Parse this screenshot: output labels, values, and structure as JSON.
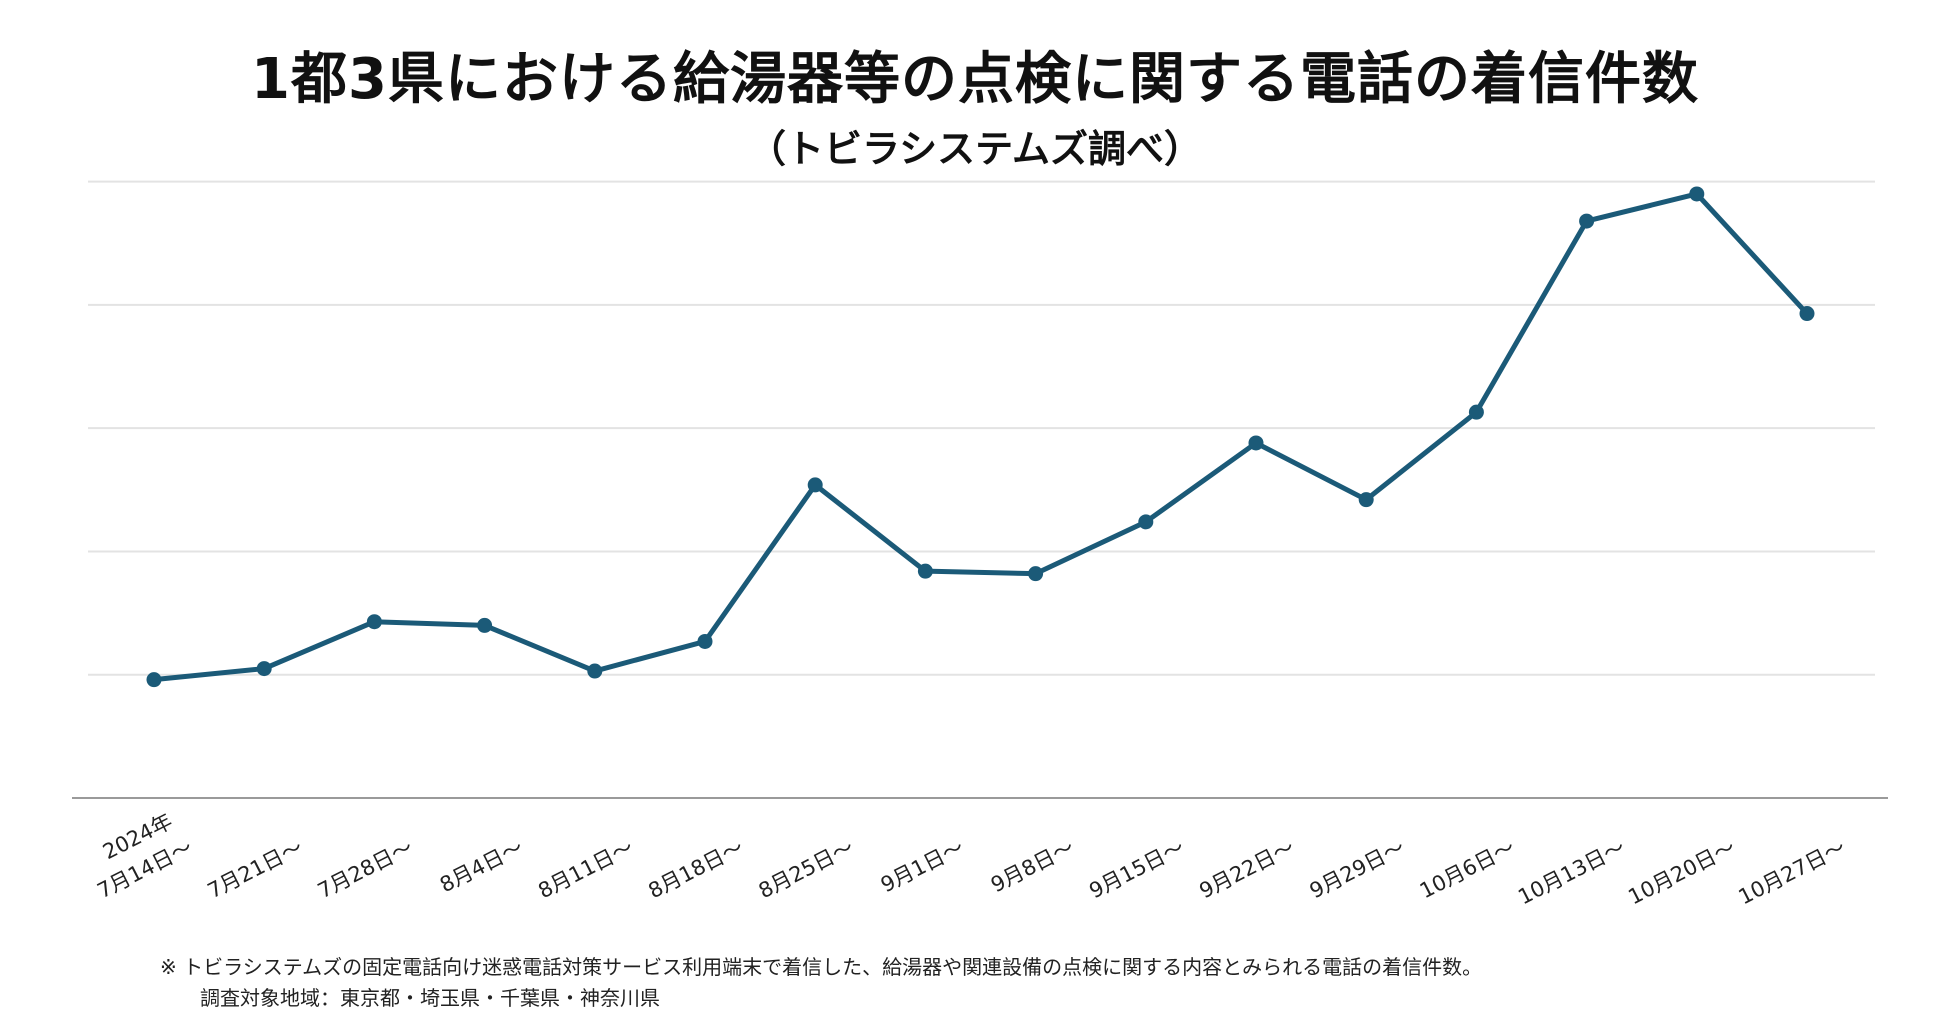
{
  "title": "1都3県における給湯器等の点検に関する電話の着信件数",
  "subtitle": "（トビラシステムズ調べ）",
  "chart_data": {
    "type": "line",
    "title": "1都3県における給湯器等の点検に関する電話の着信件数",
    "subtitle": "（トビラシステムズ調べ）",
    "x_prefix": "2024年",
    "categories": [
      "7月14日～",
      "7月21日～",
      "7月28日～",
      "8月4日～",
      "8月11日～",
      "8月18日～",
      "8月25日～",
      "9月1日～",
      "9月8日～",
      "9月15日～",
      "9月22日～",
      "9月29日～",
      "10月6日～",
      "10月13日～",
      "10月20日～",
      "10月27日～"
    ],
    "series": [
      {
        "values": [
          0.96,
          1.05,
          1.43,
          1.4,
          1.03,
          1.27,
          2.54,
          1.84,
          1.82,
          2.24,
          2.88,
          2.42,
          3.13,
          4.68,
          4.9,
          3.93
        ]
      }
    ],
    "ylim": [
      0,
      5.5
    ],
    "y_gridlines": [
      1,
      2,
      3,
      4,
      5
    ],
    "y_tick_labels_shown": false,
    "grid": true,
    "legend": "none",
    "line_color": "#1b5a78"
  },
  "notes": [
    "※ トビラシステムズの固定電話向け迷惑電話対策サービス利用端末で着信した、給湯器や関連設備の点検に関する内容とみられる電話の着信件数。",
    "調査対象地域：東京都・埼玉県・千葉県・神奈川県"
  ]
}
